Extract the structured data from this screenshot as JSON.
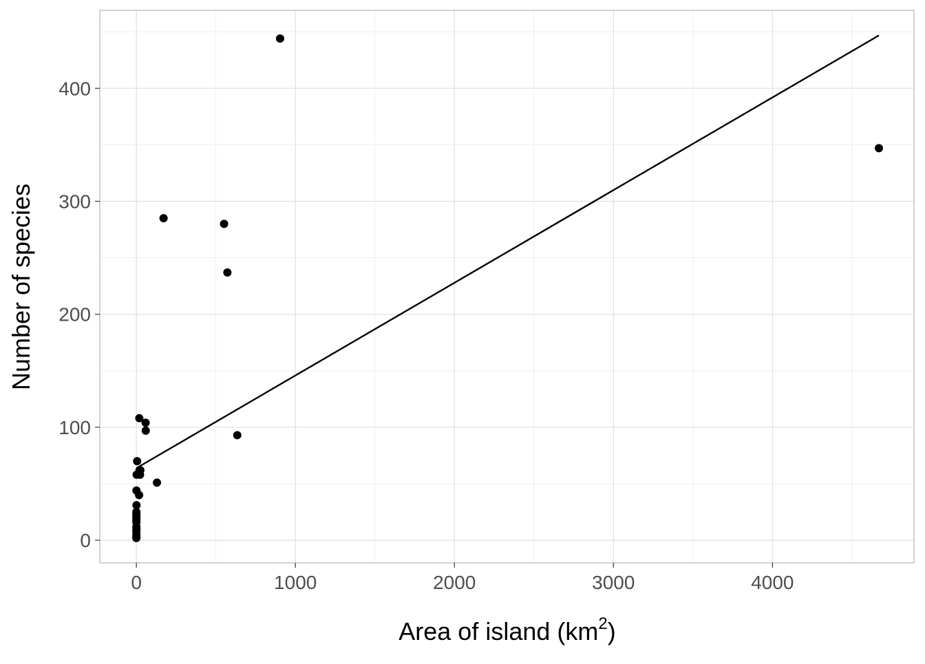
{
  "chart_data": {
    "type": "scatter",
    "title": "",
    "xlabel": "Area of island (km",
    "xlabel_superscript": "2",
    "xlabel_suffix": ")",
    "ylabel": "Number of species",
    "xlim": [
      -230,
      4890
    ],
    "ylim": [
      -20,
      469
    ],
    "x_ticks": [
      0,
      1000,
      2000,
      3000,
      4000
    ],
    "y_ticks": [
      0,
      100,
      200,
      300,
      400
    ],
    "grid": true,
    "point_color": "#000000",
    "line_color": "#000000",
    "grid_color": "#e0e0e0",
    "panel_border_color": "#b3b3b3",
    "series": [
      {
        "points": [
          {
            "x": 903.82,
            "y": 444
          },
          {
            "x": 4669.32,
            "y": 347
          },
          {
            "x": 170.92,
            "y": 285
          },
          {
            "x": 551.62,
            "y": 280
          },
          {
            "x": 572.33,
            "y": 237
          },
          {
            "x": 18.4,
            "y": 108
          },
          {
            "x": 58.27,
            "y": 104
          },
          {
            "x": 58.93,
            "y": 97
          },
          {
            "x": 634.49,
            "y": 93
          },
          {
            "x": 4.89,
            "y": 70
          },
          {
            "x": 20.0,
            "y": 62
          },
          {
            "x": 25.09,
            "y": 62
          },
          {
            "x": 1.84,
            "y": 58
          },
          {
            "x": 23.0,
            "y": 58
          },
          {
            "x": 129.49,
            "y": 51
          },
          {
            "x": 0.57,
            "y": 44
          },
          {
            "x": 17.35,
            "y": 40
          },
          {
            "x": 0.78,
            "y": 31
          },
          {
            "x": 0.2,
            "y": 25
          },
          {
            "x": 0.1,
            "y": 23
          },
          {
            "x": 0.21,
            "y": 21
          },
          {
            "x": 0.18,
            "y": 20
          },
          {
            "x": 0.1,
            "y": 18
          },
          {
            "x": 0.23,
            "y": 16
          },
          {
            "x": 0.2,
            "y": 12
          },
          {
            "x": 0.34,
            "y": 10
          },
          {
            "x": 0.05,
            "y": 8
          },
          {
            "x": 0.08,
            "y": 5
          },
          {
            "x": 0.01,
            "y": 3
          },
          {
            "x": 0.02,
            "y": 2
          }
        ]
      }
    ],
    "regression_line": {
      "x": [
        0.01,
        4669.32
      ],
      "y": [
        63.8,
        446.8
      ]
    }
  }
}
